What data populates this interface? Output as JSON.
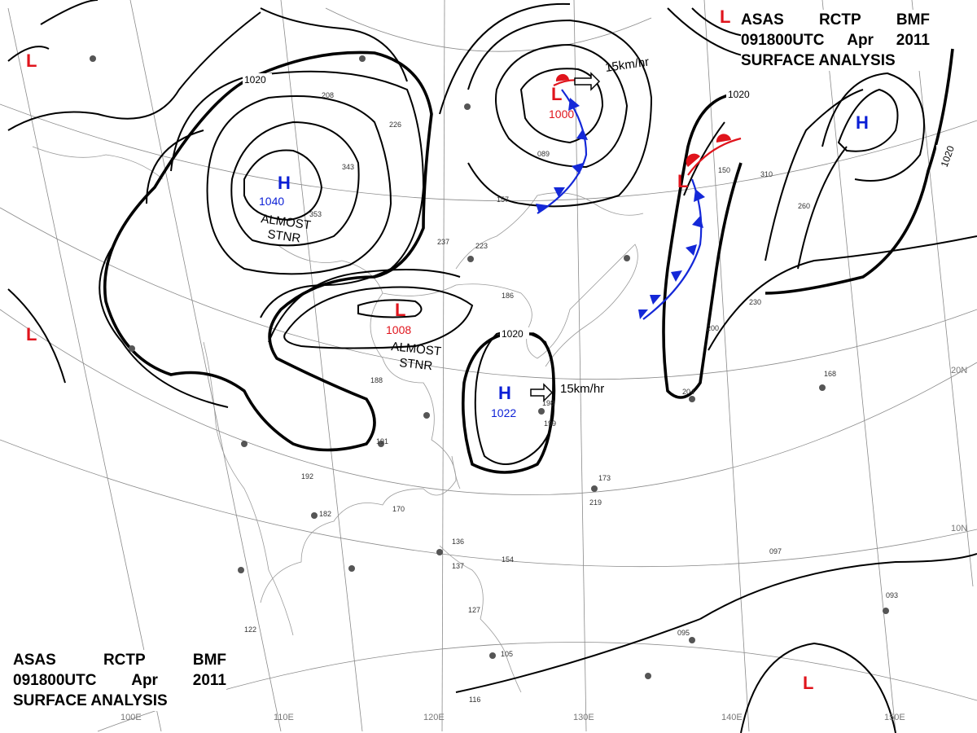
{
  "header": {
    "line1": [
      "ASAS",
      "RCTP",
      "BMF"
    ],
    "line2": [
      "091800UTC",
      "Apr",
      "2011"
    ],
    "line3": "SURFACE ANALYSIS"
  },
  "colors": {
    "high": "#0b1fd6",
    "low": "#e0141c",
    "cold_front": "#1428d8",
    "warm_front": "#e0141c",
    "isobar": "#000000",
    "graticule": "#8a8a8a"
  },
  "pressure_systems": [
    {
      "type": "H",
      "value": "1040"
    },
    {
      "type": "L",
      "value": "1008"
    },
    {
      "type": "H",
      "value": "1022"
    },
    {
      "type": "L",
      "value": "1000"
    },
    {
      "type": "H",
      "value": ""
    },
    {
      "type": "L",
      "value": ""
    },
    {
      "type": "L",
      "value": ""
    },
    {
      "type": "L",
      "value": ""
    },
    {
      "type": "L",
      "value": ""
    },
    {
      "type": "L",
      "value": ""
    }
  ],
  "isobar_labels": [
    "1020",
    "1020",
    "1020",
    "1020"
  ],
  "annotations": [
    {
      "line1": "ALMOST",
      "line2": "STNR"
    },
    {
      "line1": "ALMOST",
      "line2": "STNR"
    }
  ],
  "motion_vectors": [
    "15km/hr",
    "15km/hr"
  ],
  "lon_labels": [
    "110E",
    "120E",
    "130E",
    "140E",
    "150E",
    "100E"
  ],
  "lat_labels": [
    "20N",
    "10N"
  ],
  "station_values": [
    "188",
    "191",
    "192",
    "182",
    "170",
    "136",
    "137",
    "127",
    "105",
    "116",
    "122",
    "198",
    "199",
    "173",
    "219",
    "154",
    "097",
    "093",
    "095",
    "204",
    "168",
    "230",
    "200",
    "343",
    "353",
    "226",
    "208",
    "237",
    "223",
    "186",
    "157",
    "089",
    "150",
    "310",
    "260"
  ]
}
